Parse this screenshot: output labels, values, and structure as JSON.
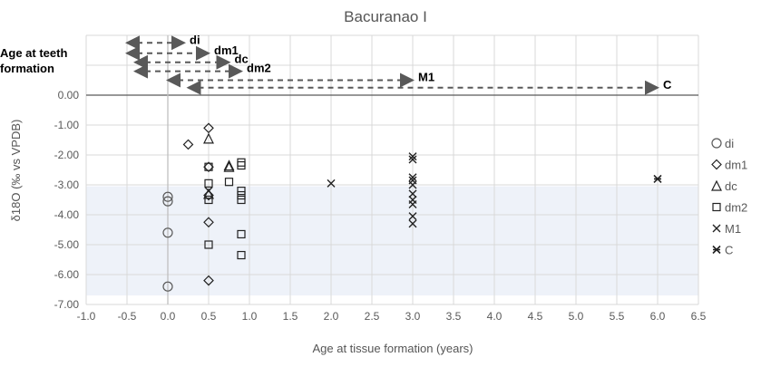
{
  "chart_data": {
    "type": "scatter",
    "title": "Bacuranao I",
    "xlabel": "Age at tissue formation (years)",
    "ylabel": "δ18O (‰ vs VPDB)",
    "annotation_label": "Age at teeth formation",
    "xlim": [
      -1.0,
      6.5
    ],
    "ylim": [
      -7.0,
      2.0
    ],
    "xticks": [
      "-1.0",
      "-0.5",
      "0.0",
      "0.5",
      "1.0",
      "1.5",
      "2.0",
      "2.5",
      "3.0",
      "3.5",
      "4.0",
      "4.5",
      "5.0",
      "5.5",
      "6.0",
      "6.5"
    ],
    "yticks": [
      "0.00",
      "-1.00",
      "-2.00",
      "-3.00",
      "-4.00",
      "-5.00",
      "-6.00",
      "-7.00"
    ],
    "grid": true,
    "legend_position": "right",
    "shaded_band": {
      "y_from": -3.05,
      "y_to": -6.7,
      "color": "#eef2f9"
    },
    "series": [
      {
        "name": "di",
        "marker": "circle",
        "points": [
          [
            0,
            -3.4
          ],
          [
            0,
            -3.55
          ],
          [
            0,
            -4.6
          ],
          [
            0,
            -6.4
          ]
        ]
      },
      {
        "name": "dm1",
        "marker": "diamond",
        "points": [
          [
            0.5,
            -1.1
          ],
          [
            0.25,
            -1.65
          ],
          [
            0.5,
            -2.4
          ],
          [
            0.5,
            -3.35
          ],
          [
            0.5,
            -4.25
          ],
          [
            0.5,
            -6.2
          ]
        ]
      },
      {
        "name": "dc",
        "marker": "triangle",
        "points": [
          [
            0.5,
            -1.45
          ],
          [
            0.75,
            -2.35
          ],
          [
            0.75,
            -2.4
          ],
          [
            0.5,
            -3.3
          ]
        ]
      },
      {
        "name": "dm2",
        "marker": "square",
        "points": [
          [
            0.5,
            -2.4
          ],
          [
            0.5,
            -2.95
          ],
          [
            0.5,
            -3.5
          ],
          [
            0.5,
            -5.0
          ],
          [
            0.75,
            -2.9
          ],
          [
            0.9,
            -2.25
          ],
          [
            0.9,
            -2.35
          ],
          [
            0.9,
            -3.2
          ],
          [
            0.9,
            -3.35
          ],
          [
            0.9,
            -3.5
          ],
          [
            0.9,
            -4.65
          ],
          [
            0.9,
            -5.35
          ]
        ]
      },
      {
        "name": "M1",
        "marker": "x",
        "points": [
          [
            0.5,
            -3.2
          ],
          [
            2,
            -2.95
          ],
          [
            3,
            -2.05
          ],
          [
            3,
            -2.15
          ],
          [
            3,
            -2.75
          ],
          [
            3,
            -2.85
          ],
          [
            3,
            -3.0
          ],
          [
            3,
            -3.3
          ],
          [
            3,
            -3.5
          ],
          [
            3,
            -3.65
          ],
          [
            3,
            -4.05
          ],
          [
            3,
            -4.3
          ]
        ]
      },
      {
        "name": "C",
        "marker": "star",
        "points": [
          [
            6,
            -2.8
          ]
        ]
      }
    ],
    "formation_ranges": [
      {
        "label": "di",
        "from": -0.5,
        "to": 0.2,
        "y": 1.75
      },
      {
        "label": "dm1",
        "from": -0.5,
        "to": 0.5,
        "y": 1.4
      },
      {
        "label": "dc",
        "from": -0.4,
        "to": 0.75,
        "y": 1.1
      },
      {
        "label": "dm2",
        "from": -0.4,
        "to": 0.9,
        "y": 0.8
      },
      {
        "label": "M1",
        "from": 0,
        "to": 3,
        "y": 0.5
      },
      {
        "label": "C",
        "from": 0.25,
        "to": 6,
        "y": 0.25
      }
    ]
  }
}
